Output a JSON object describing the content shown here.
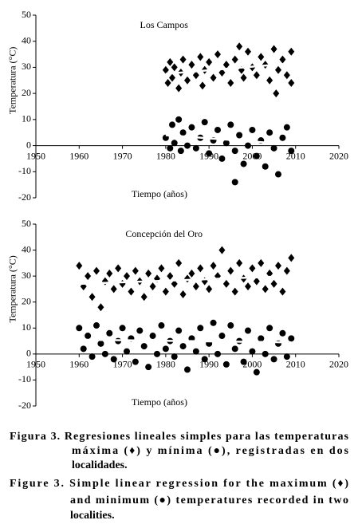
{
  "chart_data": [
    {
      "type": "scatter",
      "title": "Los Campos",
      "xlabel": "Tiempo (años)",
      "ylabel": "Temperatura (°C)",
      "xlim": [
        1950,
        2020
      ],
      "ylim": [
        -20,
        50
      ],
      "xticks": [
        1950,
        1960,
        1970,
        1980,
        1990,
        2000,
        2010,
        2020
      ],
      "yticks": [
        -20,
        -10,
        0,
        10,
        20,
        30,
        40,
        50
      ],
      "series": [
        {
          "marker": "diamond",
          "color": "#000000",
          "x": [
            1980,
            1980.5,
            1981,
            1981.5,
            1982,
            1983,
            1983.5,
            1984,
            1985,
            1986,
            1987,
            1988,
            1988.5,
            1989,
            1990,
            1991,
            1992,
            1993,
            1994,
            1995,
            1996,
            1997,
            1997.5,
            1998,
            1999,
            2000,
            2001,
            2002,
            2003,
            2004,
            2005,
            2005.5,
            2006,
            2007,
            2008,
            2009,
            2009
          ],
          "y": [
            29,
            24,
            32,
            26,
            30,
            22,
            28,
            33,
            25,
            31,
            27,
            34,
            23,
            29,
            32,
            26,
            35,
            28,
            31,
            24,
            33,
            38,
            29,
            26,
            36,
            30,
            27,
            34,
            31,
            25,
            37,
            20,
            29,
            33,
            27,
            36,
            24
          ]
        },
        {
          "marker": "circle",
          "color": "#000000",
          "x": [
            1980,
            1981,
            1981.5,
            1982,
            1983,
            1983.5,
            1984,
            1985,
            1986,
            1987,
            1988,
            1989,
            1990,
            1991,
            1992,
            1993,
            1994,
            1995,
            1996,
            1997,
            1998,
            1999,
            2000,
            2001,
            2002,
            2003,
            2004,
            2005,
            2006,
            2007,
            2008,
            2009,
            1996
          ],
          "y": [
            3,
            -1,
            8,
            1,
            10,
            -2,
            5,
            0,
            7,
            -1,
            3,
            9,
            -3,
            2,
            6,
            -5,
            1,
            8,
            -2,
            4,
            -7,
            0,
            6,
            -4,
            2,
            -8,
            5,
            -1,
            -11,
            3,
            7,
            -2,
            -14
          ]
        }
      ],
      "trend_lines": [
        {
          "color": "#ffffff",
          "x": [
            1980,
            2009
          ],
          "y": [
            27.5,
            31.5
          ]
        },
        {
          "color": "#ffffff",
          "x": [
            1980,
            2009
          ],
          "y": [
            4,
            0.5
          ]
        }
      ]
    },
    {
      "type": "scatter",
      "title": "Concepción del Oro",
      "xlabel": "Tiempo (años)",
      "ylabel": "Temperatura (°C)",
      "xlim": [
        1950,
        2020
      ],
      "ylim": [
        -20,
        50
      ],
      "xticks": [
        1950,
        1960,
        1970,
        1980,
        1990,
        2000,
        2010,
        2020
      ],
      "yticks": [
        -20,
        -10,
        0,
        10,
        20,
        30,
        40,
        50
      ],
      "series": [
        {
          "marker": "diamond",
          "color": "#000000",
          "x": [
            1960,
            1961,
            1962,
            1963,
            1964,
            1965,
            1966,
            1967,
            1968,
            1969,
            1970,
            1971,
            1972,
            1973,
            1974,
            1975,
            1976,
            1977,
            1978,
            1979,
            1980,
            1981,
            1982,
            1983,
            1984,
            1985,
            1986,
            1987,
            1988,
            1989,
            1990,
            1991,
            1992,
            1993,
            1994,
            1995,
            1996,
            1997,
            1998,
            1999,
            2000,
            2001,
            2002,
            2003,
            2004,
            2005,
            2006,
            2007,
            2008,
            2009
          ],
          "y": [
            34,
            26,
            30,
            22,
            32,
            18,
            28,
            31,
            25,
            33,
            27,
            30,
            24,
            32,
            28,
            22,
            31,
            26,
            29,
            33,
            24,
            30,
            27,
            35,
            23,
            29,
            31,
            26,
            33,
            28,
            25,
            34,
            30,
            40,
            27,
            32,
            24,
            35,
            29,
            26,
            33,
            28,
            35,
            25,
            31,
            27,
            34,
            24,
            32,
            37
          ]
        },
        {
          "marker": "circle",
          "color": "#000000",
          "x": [
            1960,
            1961,
            1962,
            1963,
            1964,
            1965,
            1966,
            1967,
            1968,
            1969,
            1970,
            1971,
            1972,
            1973,
            1974,
            1975,
            1976,
            1977,
            1978,
            1979,
            1980,
            1981,
            1982,
            1983,
            1984,
            1985,
            1986,
            1987,
            1988,
            1989,
            1990,
            1991,
            1992,
            1993,
            1994,
            1995,
            1996,
            1997,
            1998,
            1999,
            2000,
            2001,
            2002,
            2003,
            2004,
            2005,
            2006,
            2007,
            2008,
            2009
          ],
          "y": [
            10,
            2,
            7,
            -1,
            11,
            4,
            0,
            8,
            -2,
            5,
            10,
            1,
            6,
            -3,
            9,
            3,
            -5,
            7,
            0,
            11,
            2,
            5,
            -1,
            9,
            3,
            -6,
            6,
            1,
            10,
            -2,
            4,
            12,
            0,
            7,
            -4,
            11,
            2,
            5,
            -3,
            9,
            1,
            -7,
            6,
            0,
            10,
            -2,
            4,
            8,
            -1,
            6
          ]
        }
      ],
      "trend_lines": [
        {
          "color": "#ffffff",
          "x": [
            1960,
            2009
          ],
          "y": [
            27,
            30
          ]
        },
        {
          "color": "#ffffff",
          "x": [
            1960,
            2009
          ],
          "y": [
            5.5,
            4.5
          ]
        }
      ]
    }
  ],
  "caption": {
    "es": [
      "Figura 3. Regresiones lineales simples para las temperaturas",
      "máxima (♦) y mínima (●), registradas en dos",
      "localidades."
    ],
    "en": [
      "Figure 3. Simple linear regression for the maximum (♦)",
      "and minimum (●) temperatures recorded in two",
      "localities."
    ]
  }
}
